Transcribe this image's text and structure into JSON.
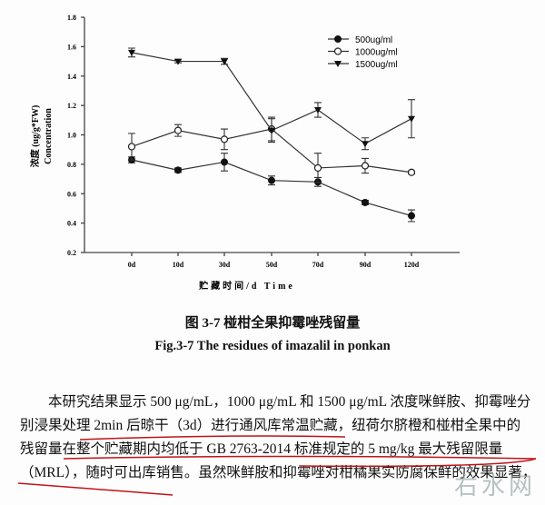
{
  "chart_data": {
    "type": "line",
    "categories": [
      "0d",
      "10d",
      "30d",
      "50d",
      "70d",
      "90d",
      "120d"
    ],
    "xlabel": "贮藏时间/d Time",
    "ylabel_cn": "浓度 (ug/g*FW)",
    "ylabel_en": "Concentration",
    "ylim": [
      0.2,
      1.8
    ],
    "yticks": [
      "0.2",
      "0.4",
      "0.6",
      "0.8",
      "1.0",
      "1.2",
      "1.4",
      "1.6",
      "1.8"
    ],
    "grid": false,
    "legend_placement": "top-right",
    "series": [
      {
        "name": "500ug/ml",
        "marker": "filled-circle",
        "values": [
          0.83,
          0.76,
          0.815,
          0.69,
          0.68,
          0.54,
          0.45
        ],
        "errors": [
          0.02,
          0.015,
          0.06,
          0.03,
          0.03,
          0.015,
          0.04
        ]
      },
      {
        "name": "1000ug/ml",
        "marker": "open-circle",
        "values": [
          0.92,
          1.03,
          0.97,
          1.04,
          0.775,
          0.79,
          0.745
        ],
        "errors": [
          0.09,
          0.04,
          0.07,
          0.08,
          0.1,
          0.05,
          0.01
        ]
      },
      {
        "name": "1500ug/ml",
        "marker": "filled-triangle-down",
        "values": [
          1.56,
          1.5,
          1.5,
          1.03,
          1.17,
          0.94,
          1.11
        ],
        "errors": [
          0.03,
          0.01,
          0.02,
          0.08,
          0.05,
          0.04,
          0.13
        ]
      }
    ]
  },
  "caption": {
    "cn": "图 3-7  椪柑全果抑霉唑残留量",
    "en": "Fig.3-7 The residues of imazalil in ponkan"
  },
  "paragraph": [
    "　　本研究结果显示 500 μg/mL，1000 μg/mL 和 1500 μg/mL 浓度咪鲜胺、抑霉唑分",
    "别浸果处理 2min 后晾干（3d）进行通风库常温贮藏，纽荷尔脐橙和椪柑全果中的",
    "残留量在整个贮藏期内均低于 GB 2763-2014 标准规定的 5 mg/kg 最大残留限量",
    "（MRL），随时可出库销售。虽然咪鲜胺和抑霉唑对柑橘果实防腐保鲜的效果显著，"
  ],
  "watermark": "右水网",
  "colors": {
    "ink": "#111111",
    "underline": "#c0141a"
  }
}
